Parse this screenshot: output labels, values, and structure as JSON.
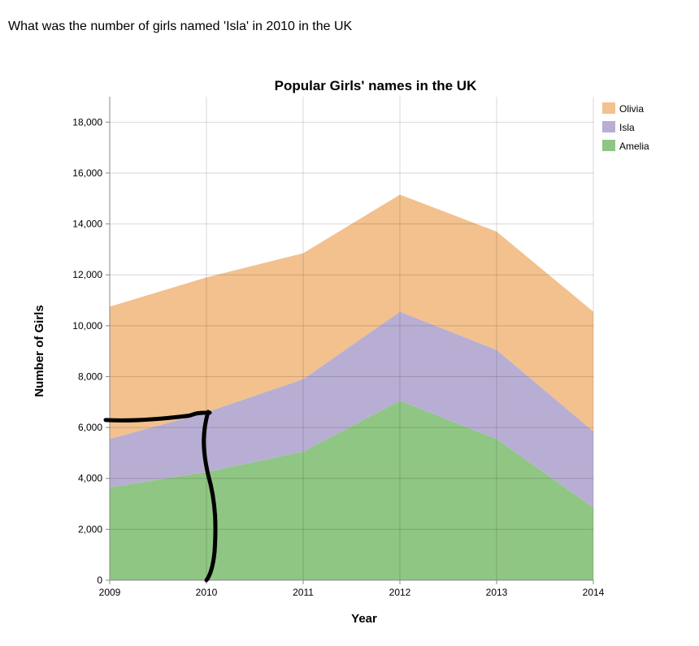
{
  "question": "What was the number of girls named 'Isla' in 2010 in the UK",
  "chart_data": {
    "type": "area",
    "stacked": true,
    "title": "Popular Girls' names in the UK",
    "xlabel": "Year",
    "ylabel": "Number of Girls",
    "x": [
      "2009",
      "2010",
      "2011",
      "2012",
      "2013",
      "2014"
    ],
    "ylim": [
      0,
      19000
    ],
    "yticks": [
      "0",
      "2,000",
      "4,000",
      "6,000",
      "8,000",
      "10,000",
      "12,000",
      "14,000",
      "16,000",
      "18,000"
    ],
    "grid": true,
    "legend_position": "top-right",
    "series": [
      {
        "name": "Amelia",
        "color": "#8fc683",
        "values": [
          3650,
          4250,
          5050,
          7050,
          5550,
          2850
        ]
      },
      {
        "name": "Isla",
        "color": "#b8aed3",
        "values": [
          1900,
          2350,
          2850,
          3500,
          3500,
          3000
        ]
      },
      {
        "name": "Olivia",
        "color": "#f2c18e",
        "values": [
          5200,
          5300,
          4950,
          4600,
          4650,
          4700
        ]
      }
    ],
    "legend_order": [
      "Olivia",
      "Isla",
      "Amelia"
    ],
    "annotation": {
      "type": "hand-drawn-marker",
      "color": "#000000",
      "x": "2010",
      "y": 6550
    }
  }
}
